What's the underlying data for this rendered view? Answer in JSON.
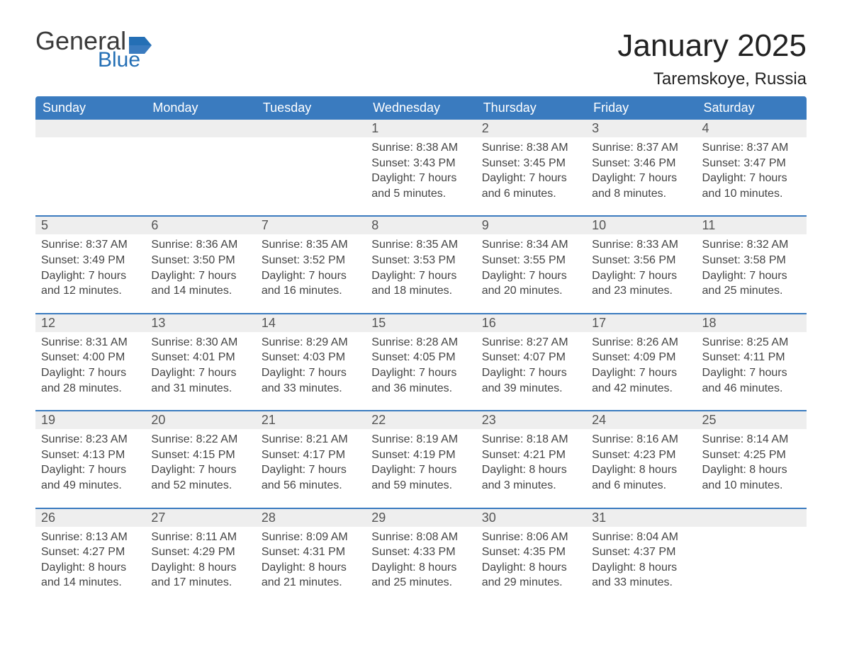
{
  "brand": {
    "word1": "General",
    "word2": "Blue"
  },
  "title": "January 2025",
  "location": "Taremskoye, Russia",
  "colors": {
    "header_blue": "#3a7bbf",
    "accent_blue": "#246fb5",
    "day_bg": "#eeeeee",
    "text": "#333333",
    "row_border": "#3a7bbf",
    "background": "#ffffff"
  },
  "day_headers": [
    "Sunday",
    "Monday",
    "Tuesday",
    "Wednesday",
    "Thursday",
    "Friday",
    "Saturday"
  ],
  "weeks": [
    [
      null,
      null,
      null,
      {
        "n": "1",
        "sunrise": "Sunrise: 8:38 AM",
        "sunset": "Sunset: 3:43 PM",
        "day1": "Daylight: 7 hours",
        "day2": "and 5 minutes."
      },
      {
        "n": "2",
        "sunrise": "Sunrise: 8:38 AM",
        "sunset": "Sunset: 3:45 PM",
        "day1": "Daylight: 7 hours",
        "day2": "and 6 minutes."
      },
      {
        "n": "3",
        "sunrise": "Sunrise: 8:37 AM",
        "sunset": "Sunset: 3:46 PM",
        "day1": "Daylight: 7 hours",
        "day2": "and 8 minutes."
      },
      {
        "n": "4",
        "sunrise": "Sunrise: 8:37 AM",
        "sunset": "Sunset: 3:47 PM",
        "day1": "Daylight: 7 hours",
        "day2": "and 10 minutes."
      }
    ],
    [
      {
        "n": "5",
        "sunrise": "Sunrise: 8:37 AM",
        "sunset": "Sunset: 3:49 PM",
        "day1": "Daylight: 7 hours",
        "day2": "and 12 minutes."
      },
      {
        "n": "6",
        "sunrise": "Sunrise: 8:36 AM",
        "sunset": "Sunset: 3:50 PM",
        "day1": "Daylight: 7 hours",
        "day2": "and 14 minutes."
      },
      {
        "n": "7",
        "sunrise": "Sunrise: 8:35 AM",
        "sunset": "Sunset: 3:52 PM",
        "day1": "Daylight: 7 hours",
        "day2": "and 16 minutes."
      },
      {
        "n": "8",
        "sunrise": "Sunrise: 8:35 AM",
        "sunset": "Sunset: 3:53 PM",
        "day1": "Daylight: 7 hours",
        "day2": "and 18 minutes."
      },
      {
        "n": "9",
        "sunrise": "Sunrise: 8:34 AM",
        "sunset": "Sunset: 3:55 PM",
        "day1": "Daylight: 7 hours",
        "day2": "and 20 minutes."
      },
      {
        "n": "10",
        "sunrise": "Sunrise: 8:33 AM",
        "sunset": "Sunset: 3:56 PM",
        "day1": "Daylight: 7 hours",
        "day2": "and 23 minutes."
      },
      {
        "n": "11",
        "sunrise": "Sunrise: 8:32 AM",
        "sunset": "Sunset: 3:58 PM",
        "day1": "Daylight: 7 hours",
        "day2": "and 25 minutes."
      }
    ],
    [
      {
        "n": "12",
        "sunrise": "Sunrise: 8:31 AM",
        "sunset": "Sunset: 4:00 PM",
        "day1": "Daylight: 7 hours",
        "day2": "and 28 minutes."
      },
      {
        "n": "13",
        "sunrise": "Sunrise: 8:30 AM",
        "sunset": "Sunset: 4:01 PM",
        "day1": "Daylight: 7 hours",
        "day2": "and 31 minutes."
      },
      {
        "n": "14",
        "sunrise": "Sunrise: 8:29 AM",
        "sunset": "Sunset: 4:03 PM",
        "day1": "Daylight: 7 hours",
        "day2": "and 33 minutes."
      },
      {
        "n": "15",
        "sunrise": "Sunrise: 8:28 AM",
        "sunset": "Sunset: 4:05 PM",
        "day1": "Daylight: 7 hours",
        "day2": "and 36 minutes."
      },
      {
        "n": "16",
        "sunrise": "Sunrise: 8:27 AM",
        "sunset": "Sunset: 4:07 PM",
        "day1": "Daylight: 7 hours",
        "day2": "and 39 minutes."
      },
      {
        "n": "17",
        "sunrise": "Sunrise: 8:26 AM",
        "sunset": "Sunset: 4:09 PM",
        "day1": "Daylight: 7 hours",
        "day2": "and 42 minutes."
      },
      {
        "n": "18",
        "sunrise": "Sunrise: 8:25 AM",
        "sunset": "Sunset: 4:11 PM",
        "day1": "Daylight: 7 hours",
        "day2": "and 46 minutes."
      }
    ],
    [
      {
        "n": "19",
        "sunrise": "Sunrise: 8:23 AM",
        "sunset": "Sunset: 4:13 PM",
        "day1": "Daylight: 7 hours",
        "day2": "and 49 minutes."
      },
      {
        "n": "20",
        "sunrise": "Sunrise: 8:22 AM",
        "sunset": "Sunset: 4:15 PM",
        "day1": "Daylight: 7 hours",
        "day2": "and 52 minutes."
      },
      {
        "n": "21",
        "sunrise": "Sunrise: 8:21 AM",
        "sunset": "Sunset: 4:17 PM",
        "day1": "Daylight: 7 hours",
        "day2": "and 56 minutes."
      },
      {
        "n": "22",
        "sunrise": "Sunrise: 8:19 AM",
        "sunset": "Sunset: 4:19 PM",
        "day1": "Daylight: 7 hours",
        "day2": "and 59 minutes."
      },
      {
        "n": "23",
        "sunrise": "Sunrise: 8:18 AM",
        "sunset": "Sunset: 4:21 PM",
        "day1": "Daylight: 8 hours",
        "day2": "and 3 minutes."
      },
      {
        "n": "24",
        "sunrise": "Sunrise: 8:16 AM",
        "sunset": "Sunset: 4:23 PM",
        "day1": "Daylight: 8 hours",
        "day2": "and 6 minutes."
      },
      {
        "n": "25",
        "sunrise": "Sunrise: 8:14 AM",
        "sunset": "Sunset: 4:25 PM",
        "day1": "Daylight: 8 hours",
        "day2": "and 10 minutes."
      }
    ],
    [
      {
        "n": "26",
        "sunrise": "Sunrise: 8:13 AM",
        "sunset": "Sunset: 4:27 PM",
        "day1": "Daylight: 8 hours",
        "day2": "and 14 minutes."
      },
      {
        "n": "27",
        "sunrise": "Sunrise: 8:11 AM",
        "sunset": "Sunset: 4:29 PM",
        "day1": "Daylight: 8 hours",
        "day2": "and 17 minutes."
      },
      {
        "n": "28",
        "sunrise": "Sunrise: 8:09 AM",
        "sunset": "Sunset: 4:31 PM",
        "day1": "Daylight: 8 hours",
        "day2": "and 21 minutes."
      },
      {
        "n": "29",
        "sunrise": "Sunrise: 8:08 AM",
        "sunset": "Sunset: 4:33 PM",
        "day1": "Daylight: 8 hours",
        "day2": "and 25 minutes."
      },
      {
        "n": "30",
        "sunrise": "Sunrise: 8:06 AM",
        "sunset": "Sunset: 4:35 PM",
        "day1": "Daylight: 8 hours",
        "day2": "and 29 minutes."
      },
      {
        "n": "31",
        "sunrise": "Sunrise: 8:04 AM",
        "sunset": "Sunset: 4:37 PM",
        "day1": "Daylight: 8 hours",
        "day2": "and 33 minutes."
      },
      null
    ]
  ]
}
